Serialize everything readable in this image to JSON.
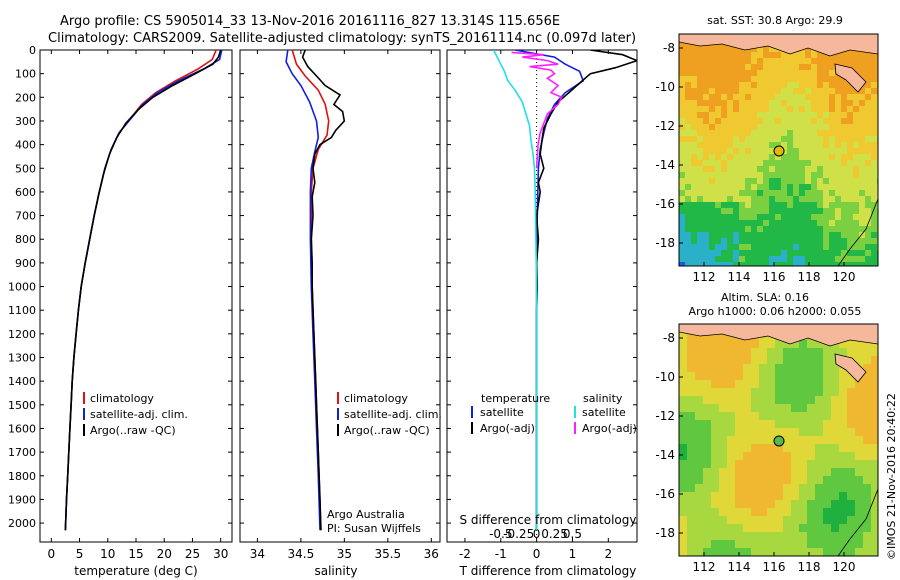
{
  "header": {
    "line1": "Argo profile: CS 5905014_33 13-Nov-2016 20161116_827 13.314S 115.656E",
    "line2": "Climatology: CARS2009. Satellite-adjusted climatology: synTS_20161114.nc (0.097d later)"
  },
  "footer": {
    "agency": "Argo Australia",
    "pi": "PI: Susan Wijffels",
    "stamp": "©IMOS 21-Nov-2016 20:40:22"
  },
  "colors": {
    "climatology": "#e01010",
    "satellite": "#1020e0",
    "argo": "#000000",
    "sal_satellite": "#20e0e0",
    "sal_argo": "#ff20ff",
    "land": "#f5b89c"
  },
  "chart_data": [
    {
      "type": "line",
      "id": "temperature",
      "xlabel": "temperature (deg C)",
      "ylabel": "",
      "xlim": [
        -2,
        32
      ],
      "ylim": [
        2080,
        0
      ],
      "xticks": [
        0,
        5,
        10,
        15,
        20,
        25,
        30
      ],
      "yticks": [
        0,
        100,
        200,
        300,
        400,
        500,
        600,
        700,
        800,
        900,
        1000,
        1100,
        1200,
        1300,
        1400,
        1500,
        1600,
        1700,
        1800,
        1900,
        2000
      ],
      "legend": [
        "climatology",
        "satellite-adj. clim.",
        "Argo(..raw -QC)"
      ],
      "series": [
        {
          "name": "climatology",
          "color": "#e01010",
          "points": [
            [
              29.2,
              0
            ],
            [
              28.5,
              40
            ],
            [
              26.0,
              80
            ],
            [
              22.0,
              130
            ],
            [
              18.5,
              180
            ],
            [
              16.0,
              230
            ],
            [
              14.0,
              290
            ],
            [
              12.0,
              350
            ],
            [
              10.6,
              420
            ],
            [
              9.5,
              500
            ],
            [
              8.5,
              600
            ],
            [
              7.6,
              700
            ],
            [
              6.8,
              800
            ],
            [
              6.0,
              900
            ],
            [
              5.3,
              1000
            ],
            [
              4.8,
              1100
            ],
            [
              4.4,
              1200
            ],
            [
              4.0,
              1300
            ],
            [
              3.7,
              1400
            ],
            [
              3.5,
              1500
            ],
            [
              3.3,
              1600
            ],
            [
              3.1,
              1700
            ],
            [
              2.9,
              1800
            ],
            [
              2.7,
              1900
            ],
            [
              2.5,
              2030
            ]
          ]
        },
        {
          "name": "satellite-adj. clim.",
          "color": "#1020e0",
          "points": [
            [
              30.2,
              0
            ],
            [
              29.8,
              40
            ],
            [
              27.0,
              80
            ],
            [
              22.5,
              130
            ],
            [
              18.8,
              180
            ],
            [
              16.2,
              230
            ],
            [
              14.1,
              290
            ],
            [
              12.0,
              350
            ],
            [
              10.6,
              420
            ],
            [
              9.5,
              500
            ],
            [
              8.5,
              600
            ],
            [
              7.6,
              700
            ],
            [
              6.8,
              800
            ],
            [
              6.0,
              900
            ],
            [
              5.3,
              1000
            ],
            [
              4.8,
              1100
            ],
            [
              4.4,
              1200
            ],
            [
              4.0,
              1300
            ],
            [
              3.7,
              1400
            ],
            [
              3.5,
              1500
            ],
            [
              3.3,
              1600
            ],
            [
              3.1,
              1700
            ],
            [
              2.9,
              1800
            ],
            [
              2.7,
              1900
            ],
            [
              2.5,
              2030
            ]
          ]
        },
        {
          "name": "Argo(..raw -QC)",
          "color": "#000000",
          "points": [
            [
              30.0,
              0
            ],
            [
              29.6,
              30
            ],
            [
              28.6,
              60
            ],
            [
              25.5,
              100
            ],
            [
              21.5,
              150
            ],
            [
              18.0,
              200
            ],
            [
              15.5,
              250
            ],
            [
              13.2,
              310
            ],
            [
              11.6,
              370
            ],
            [
              10.3,
              440
            ],
            [
              9.3,
              520
            ],
            [
              8.4,
              610
            ],
            [
              7.6,
              700
            ],
            [
              6.8,
              800
            ],
            [
              6.0,
              900
            ],
            [
              5.3,
              1000
            ],
            [
              4.8,
              1100
            ],
            [
              4.4,
              1200
            ],
            [
              4.0,
              1300
            ],
            [
              3.7,
              1400
            ],
            [
              3.5,
              1500
            ],
            [
              3.3,
              1600
            ],
            [
              3.1,
              1700
            ],
            [
              2.9,
              1800
            ],
            [
              2.7,
              1900
            ],
            [
              2.5,
              2030
            ]
          ]
        }
      ]
    },
    {
      "type": "line",
      "id": "salinity",
      "xlabel": "salinity",
      "xlim": [
        33.8,
        36.1
      ],
      "ylim": [
        2080,
        0
      ],
      "xticks": [
        34,
        34.5,
        35,
        35.5,
        36
      ],
      "legend": [
        "climatology",
        "satellite-adj. clim.",
        "Argo(..raw -QC)"
      ],
      "series": [
        {
          "name": "climatology",
          "color": "#e01010",
          "points": [
            [
              34.4,
              0
            ],
            [
              34.45,
              60
            ],
            [
              34.55,
              110
            ],
            [
              34.7,
              170
            ],
            [
              34.78,
              230
            ],
            [
              34.82,
              300
            ],
            [
              34.8,
              360
            ],
            [
              34.7,
              420
            ],
            [
              34.64,
              500
            ],
            [
              34.62,
              600
            ],
            [
              34.62,
              800
            ],
            [
              34.63,
              1000
            ],
            [
              34.65,
              1200
            ],
            [
              34.67,
              1400
            ],
            [
              34.69,
              1600
            ],
            [
              34.71,
              1800
            ],
            [
              34.73,
              2030
            ]
          ]
        },
        {
          "name": "satellite-adj. clim.",
          "color": "#1020e0",
          "points": [
            [
              34.35,
              0
            ],
            [
              34.33,
              50
            ],
            [
              34.4,
              100
            ],
            [
              34.5,
              150
            ],
            [
              34.6,
              220
            ],
            [
              34.68,
              300
            ],
            [
              34.7,
              370
            ],
            [
              34.66,
              430
            ],
            [
              34.62,
              500
            ],
            [
              34.61,
              600
            ],
            [
              34.61,
              800
            ],
            [
              34.62,
              1000
            ],
            [
              34.64,
              1200
            ],
            [
              34.66,
              1400
            ],
            [
              34.68,
              1600
            ],
            [
              34.7,
              1800
            ],
            [
              34.72,
              2030
            ]
          ]
        },
        {
          "name": "Argo(..raw -QC)",
          "color": "#000000",
          "points": [
            [
              34.55,
              0
            ],
            [
              34.52,
              30
            ],
            [
              34.58,
              70
            ],
            [
              34.68,
              110
            ],
            [
              34.78,
              150
            ],
            [
              34.95,
              190
            ],
            [
              34.88,
              230
            ],
            [
              34.98,
              260
            ],
            [
              35.0,
              300
            ],
            [
              34.9,
              340
            ],
            [
              34.85,
              370
            ],
            [
              34.72,
              400
            ],
            [
              34.66,
              440
            ],
            [
              34.64,
              500
            ],
            [
              34.66,
              560
            ],
            [
              34.63,
              620
            ],
            [
              34.64,
              700
            ],
            [
              34.62,
              800
            ],
            [
              34.63,
              900
            ],
            [
              34.63,
              1000
            ],
            [
              34.64,
              1100
            ],
            [
              34.65,
              1200
            ],
            [
              34.66,
              1300
            ],
            [
              34.67,
              1400
            ],
            [
              34.68,
              1500
            ],
            [
              34.69,
              1600
            ],
            [
              34.7,
              1700
            ],
            [
              34.71,
              1800
            ],
            [
              34.72,
              1900
            ],
            [
              34.73,
              2030
            ]
          ]
        }
      ]
    },
    {
      "type": "line",
      "id": "difference",
      "xlabel_top": "S difference from climatology",
      "xlabel": "T difference from climatology",
      "xlim_T": [
        -2.5,
        2.8
      ],
      "xticks_T": [
        -2,
        -1,
        0,
        1,
        2
      ],
      "xticks_S": [
        -0.5,
        -0.25,
        0,
        0.25,
        0.5
      ],
      "ylim": [
        2080,
        0
      ],
      "legend_left_title": "temperature",
      "legend_right_title": "salinity",
      "legend_left": [
        "satellite",
        "Argo(-adj)"
      ],
      "legend_right": [
        "satellite",
        "Argo(-adj)"
      ],
      "series": [
        {
          "name": "T satellite",
          "color": "#1020e0",
          "points": [
            [
              -0.6,
              0
            ],
            [
              0.5,
              30
            ],
            [
              0.8,
              60
            ],
            [
              1.2,
              90
            ],
            [
              1.3,
              130
            ],
            [
              0.8,
              180
            ],
            [
              0.5,
              230
            ],
            [
              0.3,
              290
            ],
            [
              0.2,
              350
            ],
            [
              0.1,
              420
            ],
            [
              0.05,
              500
            ],
            [
              0.02,
              700
            ],
            [
              0,
              900
            ],
            [
              0,
              2030
            ]
          ]
        },
        {
          "name": "T Argo(-adj)",
          "color": "#000000",
          "points": [
            [
              1.5,
              0
            ],
            [
              2.4,
              20
            ],
            [
              2.8,
              45
            ],
            [
              2.2,
              75
            ],
            [
              1.5,
              100
            ],
            [
              1.2,
              140
            ],
            [
              0.9,
              180
            ],
            [
              0.6,
              220
            ],
            [
              0.4,
              270
            ],
            [
              0.2,
              330
            ],
            [
              0.15,
              380
            ],
            [
              0.1,
              440
            ],
            [
              0.2,
              500
            ],
            [
              0.05,
              560
            ],
            [
              0.1,
              600
            ],
            [
              0.0,
              700
            ],
            [
              0.05,
              800
            ],
            [
              0.0,
              900
            ],
            [
              0.02,
              1000
            ],
            [
              0,
              1100
            ],
            [
              0,
              2030
            ]
          ]
        },
        {
          "name": "S satellite",
          "color": "#20e0e0",
          "points": [
            [
              -0.6,
              0
            ],
            [
              -0.55,
              30
            ],
            [
              -0.5,
              60
            ],
            [
              -0.45,
              90
            ],
            [
              -0.4,
              130
            ],
            [
              -0.3,
              170
            ],
            [
              -0.2,
              220
            ],
            [
              -0.15,
              270
            ],
            [
              -0.1,
              320
            ],
            [
              -0.08,
              380
            ],
            [
              -0.05,
              440
            ],
            [
              -0.03,
              500
            ],
            [
              -0.02,
              600
            ],
            [
              -0.01,
              800
            ],
            [
              0,
              1000
            ],
            [
              0,
              2030
            ]
          ]
        },
        {
          "name": "S Argo(-adj)",
          "color": "#ff20ff",
          "points": [
            [
              -0.35,
              10
            ],
            [
              0.1,
              20
            ],
            [
              -0.2,
              30
            ],
            [
              0.15,
              45
            ],
            [
              0.3,
              60
            ],
            [
              -0.1,
              70
            ],
            [
              0.2,
              85
            ],
            [
              0.25,
              100
            ],
            [
              0.15,
              120
            ],
            [
              0.3,
              150
            ],
            [
              0.2,
              180
            ],
            [
              0.35,
              200
            ],
            [
              0.3,
              230
            ],
            [
              0.15,
              270
            ],
            [
              0.1,
              310
            ],
            [
              0.05,
              350
            ],
            [
              0.02,
              400
            ],
            [
              0.01,
              450
            ],
            [
              0,
              500
            ]
          ]
        }
      ]
    }
  ],
  "maps": [
    {
      "id": "sst",
      "title": "sat. SST: 30.8  Argo: 29.9",
      "yticks": [
        "-8",
        "-10",
        "-12",
        "-14",
        "-16",
        "-18"
      ],
      "xticks": [
        "112",
        "114",
        "116",
        "118",
        "120"
      ],
      "marker_color": "#e5b800"
    },
    {
      "id": "sla",
      "title1": "Altim. SLA: 0.16",
      "title2": "Argo h1000: 0.06 h2000: 0.055",
      "yticks": [
        "-8",
        "-10",
        "-12",
        "-14",
        "-16",
        "-18"
      ],
      "xticks": [
        "112",
        "114",
        "116",
        "118",
        "120"
      ],
      "marker_color": "#5ab84a"
    }
  ]
}
